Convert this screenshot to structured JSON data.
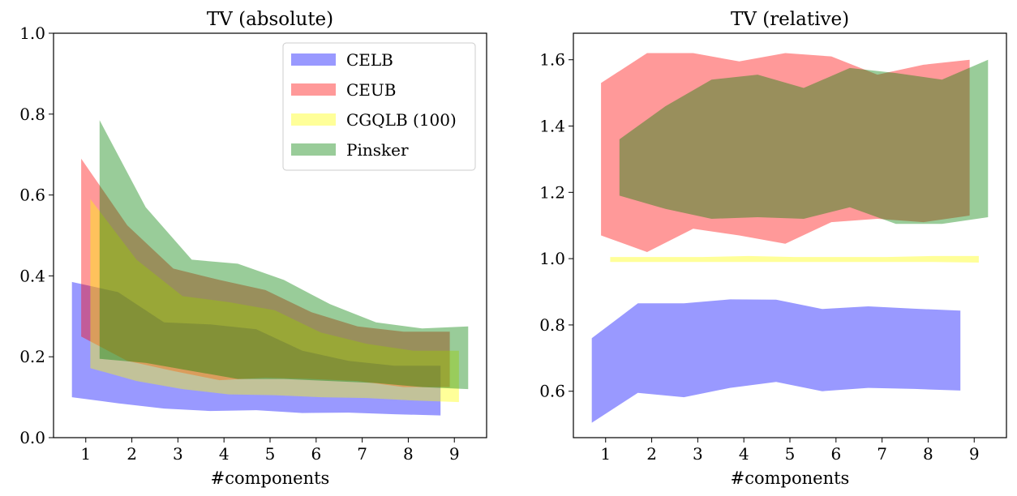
{
  "chart_data": [
    {
      "type": "area",
      "title": "TV (absolute)",
      "xlabel": "#components",
      "ylabel": "",
      "xlim": [
        0.3,
        9.7
      ],
      "ylim": [
        0,
        1.0
      ],
      "xticks": [
        1,
        2,
        3,
        4,
        5,
        6,
        7,
        8,
        9
      ],
      "yticks": [
        0.0,
        0.2,
        0.4,
        0.6,
        0.8,
        1.0
      ],
      "ytick_labels": [
        "0.0",
        "0.2",
        "0.4",
        "0.6",
        "0.8",
        "1.0"
      ],
      "legend_position": "top-right",
      "series": [
        {
          "name": "CELB",
          "color": "#0000ff",
          "alpha": 0.4,
          "x": [
            0.7,
            1.7,
            2.7,
            3.7,
            4.7,
            5.7,
            6.7,
            7.7,
            8.7
          ],
          "low": [
            0.1,
            0.085,
            0.072,
            0.066,
            0.068,
            0.061,
            0.062,
            0.058,
            0.055
          ],
          "high": [
            0.385,
            0.36,
            0.285,
            0.28,
            0.268,
            0.215,
            0.19,
            0.178,
            0.178
          ]
        },
        {
          "name": "CEUB",
          "color": "#ff0000",
          "alpha": 0.4,
          "x": [
            0.9,
            1.9,
            2.9,
            3.9,
            4.9,
            5.9,
            6.9,
            7.9,
            8.9
          ],
          "low": [
            0.25,
            0.19,
            0.165,
            0.142,
            0.148,
            0.145,
            0.14,
            0.125,
            0.125
          ],
          "high": [
            0.69,
            0.525,
            0.418,
            0.39,
            0.365,
            0.31,
            0.275,
            0.262,
            0.262
          ]
        },
        {
          "name": "CGQLB (100)",
          "color": "#ffff00",
          "alpha": 0.4,
          "x": [
            1.1,
            2.1,
            3.1,
            4.1,
            5.1,
            6.1,
            7.1,
            8.1,
            9.1
          ],
          "low": [
            0.172,
            0.14,
            0.12,
            0.107,
            0.105,
            0.1,
            0.098,
            0.092,
            0.088
          ],
          "high": [
            0.59,
            0.44,
            0.35,
            0.335,
            0.315,
            0.26,
            0.232,
            0.215,
            0.215
          ]
        },
        {
          "name": "Pinsker",
          "color": "#008000",
          "alpha": 0.4,
          "x": [
            1.3,
            2.3,
            3.3,
            4.3,
            5.3,
            6.3,
            7.3,
            8.3,
            9.3
          ],
          "low": [
            0.195,
            0.185,
            0.165,
            0.145,
            0.145,
            0.14,
            0.135,
            0.125,
            0.12
          ],
          "high": [
            0.785,
            0.57,
            0.44,
            0.43,
            0.39,
            0.33,
            0.285,
            0.27,
            0.275
          ]
        }
      ]
    },
    {
      "type": "area",
      "title": "TV (relative)",
      "xlabel": "#components",
      "ylabel": "",
      "xlim": [
        0.3,
        9.7
      ],
      "ylim": [
        0.46,
        1.68
      ],
      "xticks": [
        1,
        2,
        3,
        4,
        5,
        6,
        7,
        8,
        9
      ],
      "yticks": [
        0.6,
        0.8,
        1.0,
        1.2,
        1.4,
        1.6
      ],
      "ytick_labels": [
        "0.6",
        "0.8",
        "1.0",
        "1.2",
        "1.4",
        "1.6"
      ],
      "series": [
        {
          "name": "CELB",
          "color": "#0000ff",
          "alpha": 0.4,
          "x": [
            0.7,
            1.7,
            2.7,
            3.7,
            4.7,
            5.7,
            6.7,
            7.7,
            8.7
          ],
          "low": [
            0.505,
            0.595,
            0.582,
            0.61,
            0.628,
            0.6,
            0.61,
            0.607,
            0.602
          ],
          "high": [
            0.76,
            0.865,
            0.865,
            0.877,
            0.876,
            0.848,
            0.856,
            0.849,
            0.843
          ]
        },
        {
          "name": "CEUB",
          "color": "#ff0000",
          "alpha": 0.4,
          "x": [
            0.9,
            1.9,
            2.9,
            3.9,
            4.9,
            5.9,
            6.9,
            7.9,
            8.9
          ],
          "low": [
            1.07,
            1.02,
            1.09,
            1.07,
            1.045,
            1.11,
            1.12,
            1.11,
            1.13
          ],
          "high": [
            1.53,
            1.62,
            1.62,
            1.595,
            1.62,
            1.61,
            1.555,
            1.585,
            1.6
          ]
        },
        {
          "name": "CGQLB (100)",
          "color": "#ffff00",
          "alpha": 0.4,
          "x": [
            1.1,
            2.1,
            3.1,
            4.1,
            5.1,
            6.1,
            7.1,
            8.1,
            9.1
          ],
          "low": [
            0.99,
            0.99,
            0.99,
            0.99,
            0.99,
            0.99,
            0.99,
            0.99,
            0.988
          ],
          "high": [
            1.005,
            1.005,
            1.005,
            1.008,
            1.005,
            1.005,
            1.005,
            1.008,
            1.008
          ]
        },
        {
          "name": "Pinsker",
          "color": "#008000",
          "alpha": 0.4,
          "x": [
            1.3,
            2.3,
            3.3,
            4.3,
            5.3,
            6.3,
            7.3,
            8.3,
            9.3
          ],
          "low": [
            1.19,
            1.15,
            1.12,
            1.125,
            1.12,
            1.155,
            1.105,
            1.105,
            1.125
          ],
          "high": [
            1.36,
            1.46,
            1.54,
            1.555,
            1.515,
            1.575,
            1.56,
            1.54,
            1.6
          ]
        }
      ]
    }
  ]
}
